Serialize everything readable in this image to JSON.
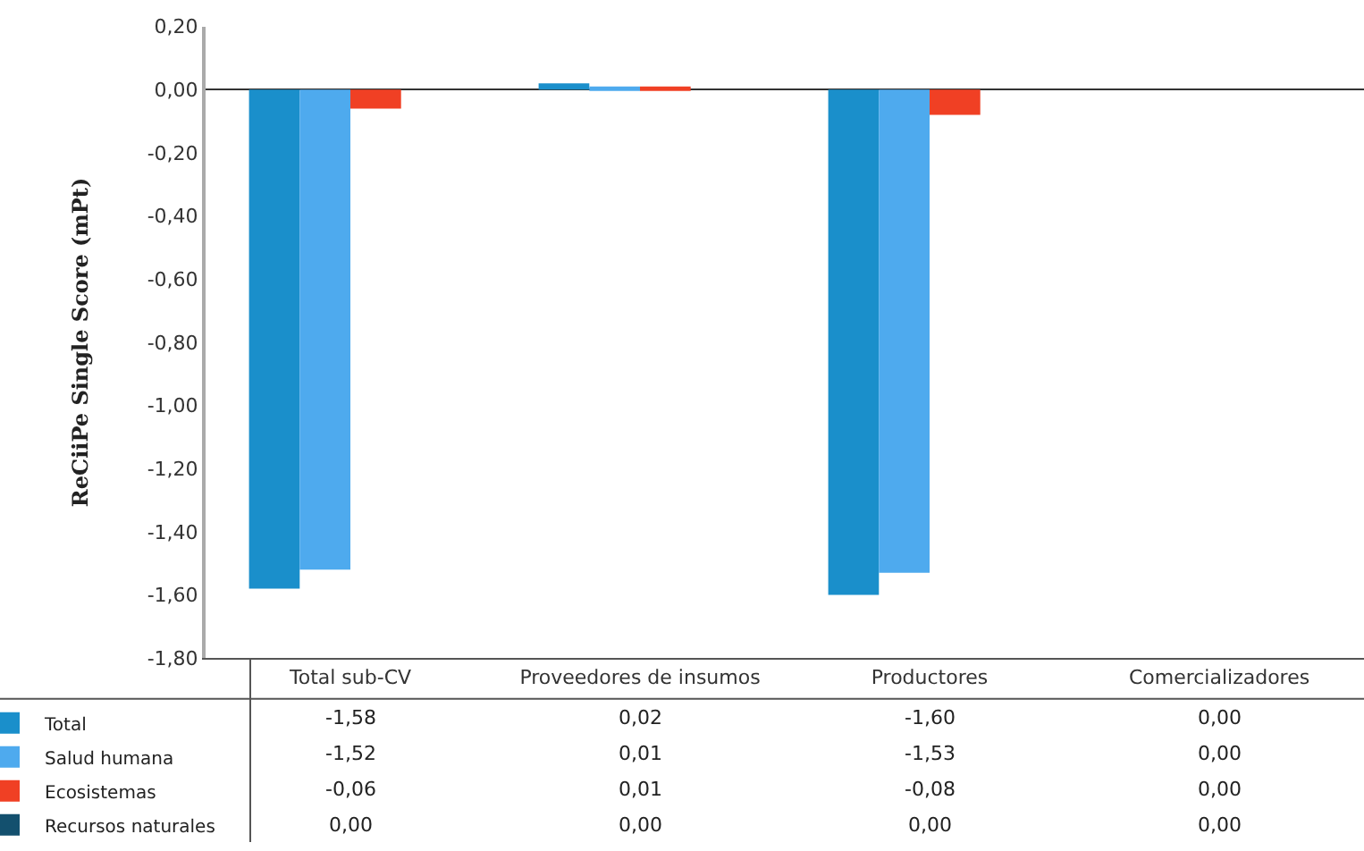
{
  "chart_data": {
    "type": "bar",
    "ylabel": "ReCiiPe Single Score (mPt)",
    "categories": [
      "Total sub-CV",
      "Proveedores de insumos",
      "Productores",
      "Comercializadores"
    ],
    "series": [
      {
        "name": "Total",
        "color": "#1a8fcb",
        "values": [
          -1.58,
          0.02,
          -1.6,
          0.0
        ],
        "value_labels": [
          "-1,58",
          "0,02",
          "-1,60",
          "0,00"
        ]
      },
      {
        "name": "Salud humana",
        "color": "#4eaaee",
        "values": [
          -1.52,
          0.01,
          -1.53,
          0.0
        ],
        "value_labels": [
          "-1,52",
          "0,01",
          "-1,53",
          "0,00"
        ]
      },
      {
        "name": "Ecosistemas",
        "color": "#f04024",
        "values": [
          -0.06,
          0.01,
          -0.08,
          0.0
        ],
        "value_labels": [
          "-0,06",
          "0,01",
          "-0,08",
          "0,00"
        ]
      },
      {
        "name": "Recursos naturales",
        "color": "#13506e",
        "values": [
          0.0,
          0.0,
          0.0,
          0.0
        ],
        "value_labels": [
          "0,00",
          "0,00",
          "0,00",
          "0,00"
        ]
      }
    ],
    "ylim": [
      -1.8,
      0.2
    ],
    "yticks": [
      {
        "value": 0.2,
        "label": "0,20"
      },
      {
        "value": 0,
        "label": "0,00"
      },
      {
        "value": -0.2,
        "label": "-0,20"
      },
      {
        "value": -0.4,
        "label": "-0,40"
      },
      {
        "value": -0.6,
        "label": "-0,60"
      },
      {
        "value": -0.8,
        "label": "-0,80"
      },
      {
        "value": -1.0,
        "label": "-1,00"
      },
      {
        "value": -1.2,
        "label": "-1,20"
      },
      {
        "value": -1.4,
        "label": "-1,40"
      },
      {
        "value": -1.6,
        "label": "-1,60"
      },
      {
        "value": -1.8,
        "label": "-1,80"
      }
    ],
    "legend": "bottom left"
  }
}
